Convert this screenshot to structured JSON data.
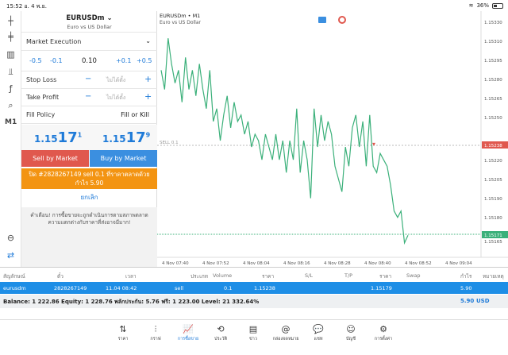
{
  "status_bar": {
    "time": "15:52",
    "date": "อ. 4 พ.ย.",
    "battery": "36%"
  },
  "left_toolbar": {
    "timeframe": "M1"
  },
  "order_panel": {
    "symbol": "EURUSDm",
    "symbol_desc": "Euro vs US Dollar",
    "execution": "Market Execution",
    "volume_steps": {
      "minus_big": "-0.5",
      "minus_small": "-0.1",
      "value": "0.10",
      "plus_small": "+0.1",
      "plus_big": "+0.5"
    },
    "stop_loss": {
      "label": "Stop Loss",
      "minus": "−",
      "placeholder": "ไม่ได้ตั้ง",
      "plus": "+"
    },
    "take_profit": {
      "label": "Take Profit",
      "minus": "−",
      "placeholder": "ไม่ได้ตั้ง",
      "plus": "+"
    },
    "fill_policy": {
      "label": "Fill Policy",
      "value": "Fill or Kill"
    },
    "sell_price": {
      "main": "1.15",
      "big": "17",
      "sup": "1"
    },
    "buy_price": {
      "main": "1.15",
      "big": "17",
      "sup": "9"
    },
    "sell_button": "Sell by Market",
    "buy_button": "Buy by Market",
    "close_line1": "ปิด #2828267149 sell 0.1 ที่ราคาตลาดด้วย",
    "close_line2": "กำไร 5.90",
    "cancel": "ยกเลิก",
    "warning": "คำเตือน! การซื้อขายจะถูกดำเนินการตามสภาพตลาด ความแตกต่างกับราคาที่ส่งอาจมีมาก!"
  },
  "chart": {
    "title": "EURUSDm • M1",
    "subtitle": "Euro vs US Dollar",
    "sell_line_label": "SELL 0.1",
    "price_labels": [
      "1.15330",
      "1.15310",
      "1.15295",
      "1.15280",
      "1.15265",
      "1.15250",
      "1.15238",
      "1.15220",
      "1.15205",
      "1.15190",
      "1.15180",
      "1.15171",
      "1.15165"
    ],
    "sell_price_tag": "1.15238",
    "bid_price_tag": "1.15171",
    "time_labels": [
      "4 Nov 07:40",
      "4 Nov 07:52",
      "4 Nov 08:04",
      "4 Nov 08:16",
      "4 Nov 08:28",
      "4 Nov 08:40",
      "4 Nov 08:52",
      "4 Nov 09:04"
    ]
  },
  "chart_data": {
    "type": "line",
    "ylim": [
      1.1516,
      1.1534
    ],
    "x": [
      "07:38",
      "07:39",
      "07:40",
      "07:41",
      "07:42",
      "07:43",
      "07:44",
      "07:45",
      "07:46",
      "07:47",
      "07:48",
      "07:49",
      "07:50",
      "07:51",
      "07:52",
      "07:53",
      "07:54",
      "07:55",
      "07:56",
      "07:57",
      "07:58",
      "07:59",
      "08:00",
      "08:01",
      "08:02",
      "08:03",
      "08:04",
      "08:05",
      "08:06",
      "08:07",
      "08:08",
      "08:09",
      "08:10",
      "08:11",
      "08:12",
      "08:13",
      "08:14",
      "08:15",
      "08:16",
      "08:17",
      "08:18",
      "08:19",
      "08:20",
      "08:21",
      "08:22",
      "08:23",
      "08:24",
      "08:25",
      "08:26",
      "08:27",
      "08:28",
      "08:29",
      "08:30",
      "08:31",
      "08:32",
      "08:33",
      "08:34",
      "08:35",
      "08:36",
      "08:37",
      "08:38",
      "08:39",
      "08:40",
      "08:41",
      "08:42",
      "08:43",
      "08:44",
      "08:45",
      "08:46",
      "08:47",
      "08:48",
      "08:49"
    ],
    "values": [
      1.153,
      1.15285,
      1.15325,
      1.15305,
      1.1529,
      1.153,
      1.15275,
      1.1531,
      1.15285,
      1.153,
      1.1528,
      1.15305,
      1.15285,
      1.1527,
      1.153,
      1.1526,
      1.1527,
      1.15245,
      1.15265,
      1.1528,
      1.15255,
      1.15275,
      1.1526,
      1.15265,
      1.1525,
      1.1526,
      1.1524,
      1.1525,
      1.15245,
      1.1523,
      1.1525,
      1.1524,
      1.1523,
      1.1525,
      1.1523,
      1.15245,
      1.1522,
      1.15245,
      1.1523,
      1.1527,
      1.1522,
      1.15245,
      1.1523,
      1.152,
      1.1527,
      1.1524,
      1.15265,
      1.15245,
      1.1526,
      1.1525,
      1.15225,
      1.15215,
      1.15205,
      1.1524,
      1.15225,
      1.15255,
      1.15265,
      1.1524,
      1.1526,
      1.15225,
      1.15265,
      1.15225,
      1.1522,
      1.15235,
      1.1523,
      1.15225,
      1.1521,
      1.1519,
      1.15185,
      1.1519,
      1.15165,
      1.15171
    ]
  },
  "table": {
    "headers": [
      "สัญลักษณ์",
      "ตั๋ว",
      "เวลา",
      "ประเภท",
      "Volume",
      "ราคา",
      "S/L",
      "T/P",
      "ราคา",
      "Swap",
      "กำไร",
      "หมายเหตุ"
    ],
    "row": {
      "symbol": "eurusdm",
      "ticket": "2828267149",
      "time": "11.04 08:42",
      "type": "sell",
      "volume": "0.1",
      "open_price": "1.15238",
      "sl": "",
      "tp": "",
      "current_price": "1.15179",
      "swap": "",
      "profit": "5.90",
      "comment": ""
    }
  },
  "balance": {
    "text": "Balance: 1 222.86 Equity: 1 228.76 พลักประกัน: 5.76 ฟรี: 1 223.00 Level: 21 332.64%",
    "profit": "5.90",
    "currency": "USD"
  },
  "tabs": [
    {
      "label": "ราคา",
      "icon": "⇅"
    },
    {
      "label": "กราฟ",
      "icon": "⫶"
    },
    {
      "label": "การซื้อขาย",
      "icon": "📈"
    },
    {
      "label": "ประวัติ",
      "icon": "⟲"
    },
    {
      "label": "ข่าว",
      "icon": "▤"
    },
    {
      "label": "กล่องจดหมาย",
      "icon": "@"
    },
    {
      "label": "แชท",
      "icon": "💬"
    },
    {
      "label": "บัญชี",
      "icon": "☺"
    },
    {
      "label": "การตั้งค่า",
      "icon": "⚙"
    }
  ],
  "colors": {
    "accent": "#1e7ad8",
    "sell": "#e0584e",
    "buy": "#3b8fe0",
    "orange": "#f39412",
    "line": "#3bb07a"
  }
}
